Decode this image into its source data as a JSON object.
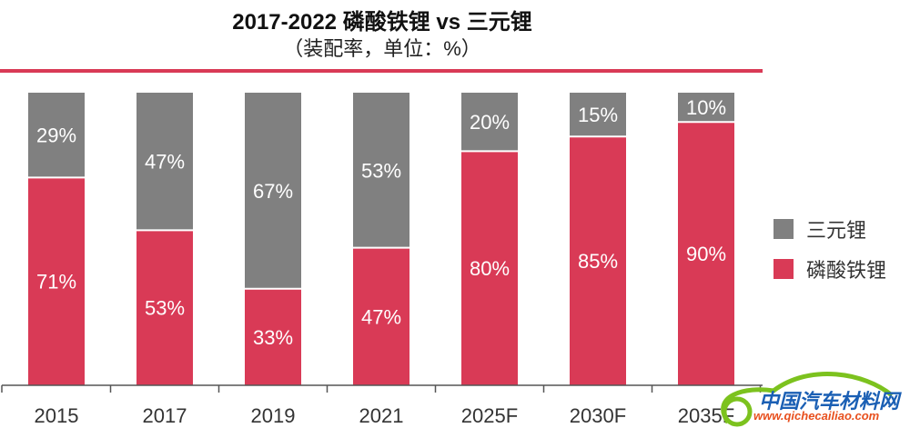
{
  "chart_data": {
    "type": "bar",
    "stacked": true,
    "title": "2017-2022 磷酸铁锂 vs 三元锂",
    "subtitle": "（装配率，单位：%）",
    "categories": [
      "2015",
      "2017",
      "2019",
      "2021",
      "2025F",
      "2030F",
      "2035F"
    ],
    "series": [
      {
        "name": "磷酸铁锂",
        "color": "#d93a56",
        "values": [
          71,
          53,
          33,
          47,
          80,
          85,
          90
        ]
      },
      {
        "name": "三元锂",
        "color": "#808080",
        "values": [
          29,
          47,
          67,
          53,
          20,
          15,
          10
        ]
      }
    ],
    "ylim": [
      0,
      100
    ],
    "legend_position": "right",
    "legend": [
      "三元锂",
      "磷酸铁锂"
    ]
  },
  "watermark": {
    "name": "中国汽车材料网",
    "url": "www.qichecailiao.com"
  }
}
